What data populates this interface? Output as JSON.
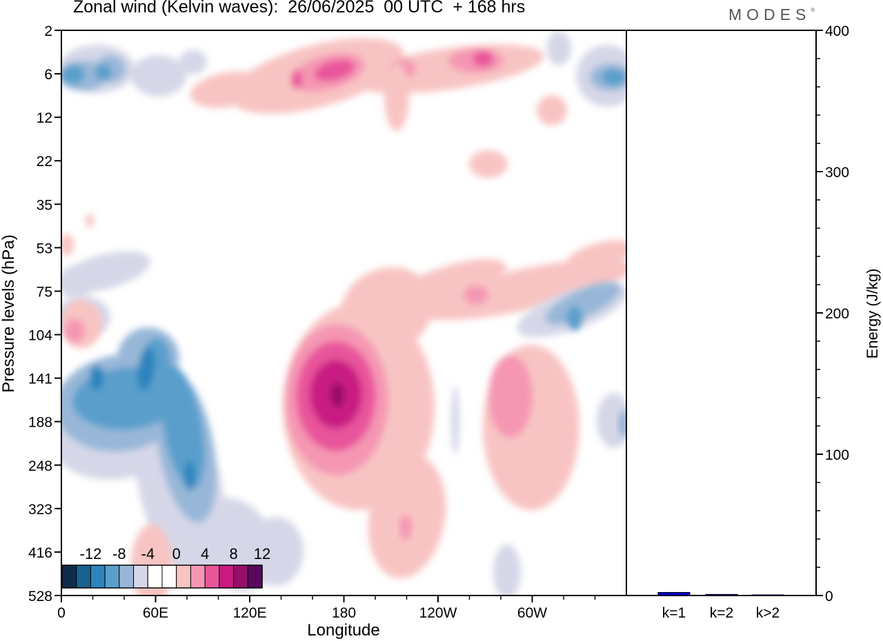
{
  "header": {
    "title": "Zonal wind (Kelvin waves):  26/06/2025  00 UTC  + 168 hrs",
    "brand": "MODES"
  },
  "chart_data": [
    {
      "type": "heatmap",
      "title": "Zonal wind (Kelvin waves):  26/06/2025  00 UTC  + 168 hrs",
      "xlabel": "Longitude",
      "ylabel": "Pressure levels (hPa)",
      "x_ticks": [
        "0",
        "60E",
        "120E",
        "180",
        "120W",
        "60W"
      ],
      "x_tick_degrees": [
        0,
        60,
        120,
        180,
        240,
        300
      ],
      "xlim": [
        0,
        360
      ],
      "y_ticks": [
        "2",
        "6",
        "12",
        "22",
        "35",
        "53",
        "75",
        "104",
        "141",
        "188",
        "248",
        "323",
        "416",
        "528"
      ],
      "y_scale": "pressure levels (top = 2 hPa, bottom = 528 hPa)",
      "colorbar": {
        "labels": [
          "-12",
          "-8",
          "-4",
          "0",
          "4",
          "8",
          "12"
        ],
        "colors": [
          "#0d2c4a",
          "#17628f",
          "#2b84bd",
          "#5a9fcc",
          "#98b7d8",
          "#d5d7e8",
          "#ffffff",
          "#ffffff",
          "#f8c4c3",
          "#f597b3",
          "#e9559b",
          "#c81b82",
          "#960f68",
          "#58095e"
        ],
        "placement": "bottom-left"
      },
      "features": [
        {
          "sign": "negative",
          "lon": 30,
          "level": "6",
          "peak": -10
        },
        {
          "sign": "positive",
          "lon": 175,
          "level": "6",
          "peak": 8
        },
        {
          "sign": "positive",
          "lon": 270,
          "level": "6",
          "peak": 8
        },
        {
          "sign": "negative",
          "lon": 355,
          "level": "6",
          "peak": -8
        },
        {
          "sign": "negative",
          "lon": 55,
          "level": "141",
          "peak": -12
        },
        {
          "sign": "positive",
          "lon": 177,
          "level": "141",
          "peak": 12
        },
        {
          "sign": "positive",
          "lon": 283,
          "level": "141",
          "peak": 6
        },
        {
          "sign": "negative",
          "lon": 325,
          "level": "104",
          "peak": -8
        }
      ]
    },
    {
      "type": "bar",
      "categories": [
        "k=1",
        "k=2",
        "k>2"
      ],
      "values": [
        2.2,
        0.8,
        0.5
      ],
      "ylabel": "Energy (J/kg)",
      "ylim": [
        0,
        400
      ],
      "y_ticks": [
        "0",
        "100",
        "200",
        "300",
        "400"
      ],
      "color": "#0000c8"
    }
  ]
}
